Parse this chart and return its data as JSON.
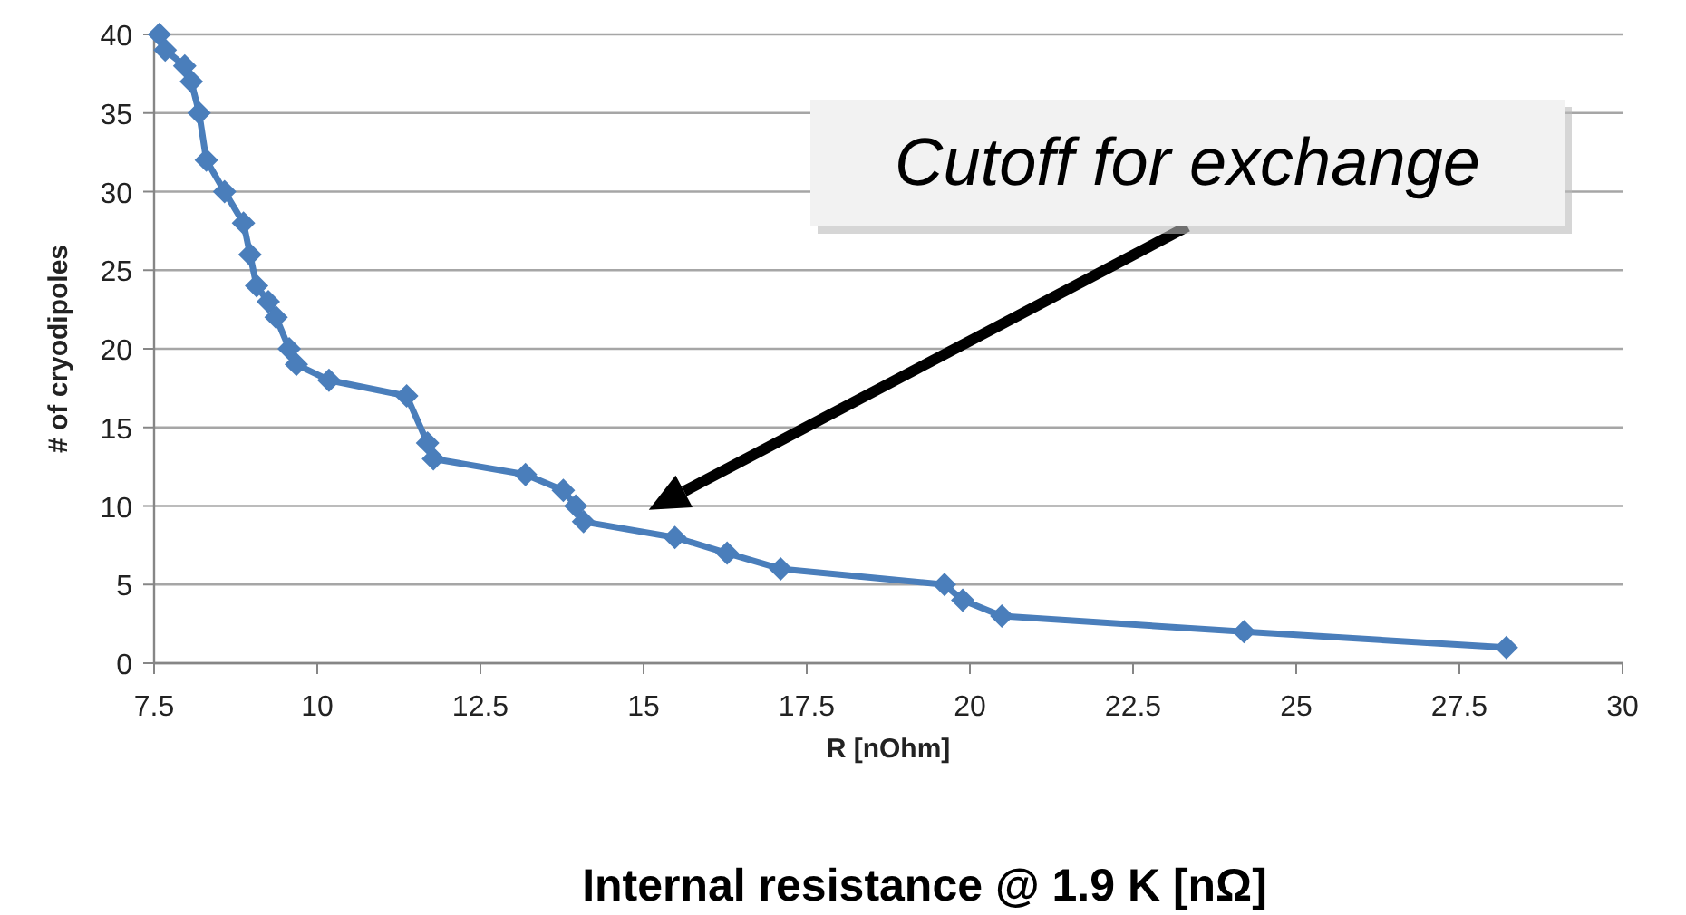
{
  "chart_data": {
    "type": "line",
    "xlabel": "R  [nOhm]",
    "ylabel": "# of cryodipoles",
    "x": [
      7.58,
      7.67,
      7.97,
      8.07,
      8.19,
      8.3,
      8.58,
      8.87,
      8.97,
      9.07,
      9.25,
      9.37,
      9.57,
      9.68,
      10.18,
      11.37,
      11.69,
      11.78,
      13.19,
      13.77,
      13.96,
      14.08,
      15.48,
      16.28,
      17.1,
      19.61,
      19.89,
      20.49,
      24.2,
      28.22
    ],
    "series": [
      {
        "color": "#4a7ebb",
        "values": [
          40,
          39,
          38,
          37,
          35,
          32,
          30,
          28,
          26,
          24,
          23,
          22,
          20,
          19,
          18,
          17,
          14,
          13,
          12,
          11,
          10,
          9,
          8,
          7,
          6,
          5,
          4,
          3,
          2,
          1
        ]
      }
    ],
    "xlim": [
      7.5,
      30
    ],
    "xticks": [
      7.5,
      10,
      12.5,
      15,
      17.5,
      20,
      22.5,
      25,
      27.5,
      30
    ],
    "ylim": [
      0,
      40
    ],
    "yticks": [
      0,
      5,
      10,
      15,
      20,
      25,
      30,
      35,
      40
    ],
    "grid": "y",
    "marker": "diamond",
    "line_style": "solid",
    "annotations": [
      "Cutoff for exchange",
      "Internal resistance @ 1.9 K [nΩ]"
    ]
  }
}
